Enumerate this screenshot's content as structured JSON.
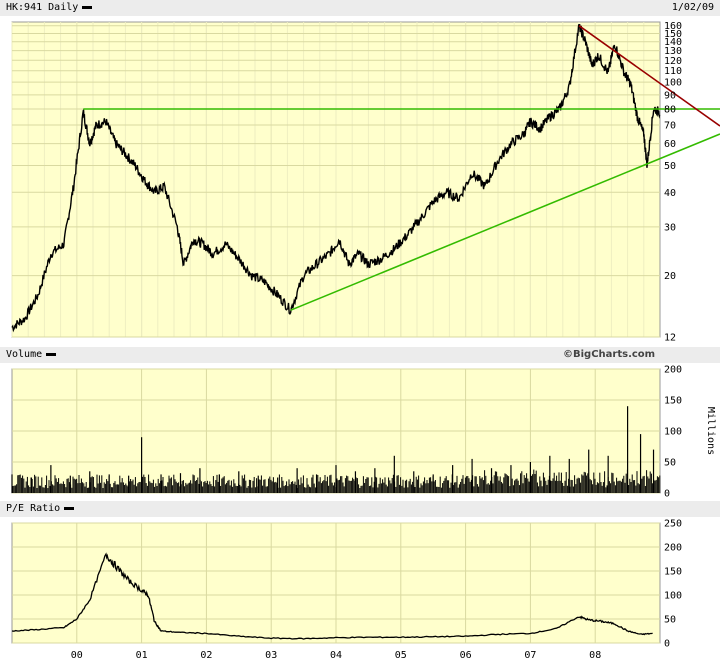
{
  "header": {
    "symbol": "HK:941",
    "period": "Daily",
    "date": "1/02/09"
  },
  "volume_title": "Volume",
  "pe_title": "P/E Ratio",
  "credit": "©BigCharts.com",
  "colors": {
    "panel": "#ffffcc",
    "grid": "#d9d9a0",
    "series": "#000000",
    "support": "#33bb00",
    "resistance": "#990000"
  },
  "chart_data": [
    {
      "type": "line",
      "name": "price",
      "scale": "log",
      "ylim": [
        12,
        165
      ],
      "y_ticks": [
        12,
        20,
        30,
        40,
        50,
        60,
        70,
        80,
        90,
        100,
        110,
        120,
        130,
        140,
        150,
        160
      ],
      "x_ticks": [
        "00",
        "01",
        "02",
        "03",
        "04",
        "05",
        "06",
        "07",
        "08"
      ],
      "x_tick_positions": [
        2000,
        2001,
        2002,
        2003,
        2004,
        2005,
        2006,
        2007,
        2008
      ],
      "xlim": [
        1999.0,
        2009.0
      ],
      "series": [
        {
          "values_x": [
            1999.0,
            1999.2,
            1999.4,
            1999.6,
            1999.8,
            1999.95,
            2000.1,
            2000.2,
            2000.3,
            2000.45,
            2000.6,
            2000.75,
            2000.9,
            2001.05,
            2001.2,
            2001.35,
            2001.55,
            2001.65,
            2001.8,
            2001.95,
            2002.1,
            2002.3,
            2002.5,
            2002.7,
            2002.9,
            2003.1,
            2003.3,
            2003.5,
            2003.7,
            2003.9,
            2004.05,
            2004.2,
            2004.35,
            2004.5,
            2004.7,
            2004.9,
            2005.1,
            2005.3,
            2005.5,
            2005.7,
            2005.9,
            2006.1,
            2006.3,
            2006.5,
            2006.7,
            2006.9,
            2007.0,
            2007.15,
            2007.3,
            2007.45,
            2007.6,
            2007.75,
            2007.85,
            2007.95,
            2008.05,
            2008.2,
            2008.3,
            2008.45,
            2008.55,
            2008.65,
            2008.75,
            2008.8,
            2008.9,
            2009.0
          ],
          "values": [
            13,
            14,
            17,
            24,
            26,
            42,
            78,
            60,
            70,
            72,
            60,
            55,
            50,
            44,
            40,
            42,
            30,
            22,
            27,
            26,
            24,
            26,
            23,
            20,
            19,
            17,
            15,
            20,
            22,
            24,
            27,
            22,
            24,
            22,
            23,
            25,
            28,
            32,
            37,
            40,
            38,
            47,
            42,
            52,
            60,
            65,
            72,
            68,
            75,
            80,
            96,
            160,
            140,
            115,
            125,
            108,
            138,
            108,
            98,
            75,
            65,
            50,
            80,
            78
          ]
        }
      ],
      "trendlines": [
        {
          "name": "resistance-horizontal",
          "color": "#33bb00",
          "from": [
            2000.1,
            80
          ],
          "to": [
            2009.0,
            80
          ]
        },
        {
          "name": "support-rising",
          "color": "#33bb00",
          "from": [
            2003.3,
            15
          ],
          "to": [
            2009.0,
            65
          ]
        },
        {
          "name": "resistance-falling",
          "color": "#990000",
          "from": [
            2007.75,
            160
          ],
          "to": [
            2009.0,
            82
          ]
        }
      ]
    },
    {
      "type": "bar",
      "name": "volume",
      "ylabel": "Millions",
      "ylim": [
        0,
        200
      ],
      "y_ticks": [
        0,
        50,
        100,
        150,
        200
      ],
      "series": [
        {
          "values_x": [
            1999.0,
            1999.3,
            1999.6,
            1999.9,
            2000.2,
            2000.5,
            2000.8,
            2001.0,
            2001.3,
            2001.6,
            2001.9,
            2002.2,
            2002.5,
            2002.8,
            2003.1,
            2003.4,
            2003.7,
            2004.0,
            2004.3,
            2004.6,
            2004.9,
            2005.2,
            2005.5,
            2005.8,
            2006.1,
            2006.4,
            2006.7,
            2007.0,
            2007.3,
            2007.6,
            2007.9,
            2008.2,
            2008.5,
            2008.7,
            2008.9
          ],
          "values": [
            30,
            25,
            45,
            28,
            35,
            30,
            28,
            90,
            30,
            32,
            40,
            30,
            35,
            28,
            25,
            40,
            30,
            45,
            35,
            40,
            60,
            35,
            30,
            45,
            55,
            40,
            45,
            50,
            60,
            55,
            70,
            60,
            140,
            95,
            70
          ]
        }
      ]
    },
    {
      "type": "line",
      "name": "pe-ratio",
      "ylim": [
        0,
        250
      ],
      "y_ticks": [
        0,
        50,
        100,
        150,
        200,
        250
      ],
      "series": [
        {
          "values_x": [
            1999.0,
            1999.4,
            1999.8,
            2000.0,
            2000.2,
            2000.45,
            2000.6,
            2000.8,
            2001.0,
            2001.1,
            2001.2,
            2001.3,
            2001.6,
            2002.0,
            2002.5,
            2003.0,
            2003.5,
            2004.0,
            2004.5,
            2005.0,
            2005.5,
            2006.0,
            2006.5,
            2007.0,
            2007.4,
            2007.75,
            2007.9,
            2008.1,
            2008.3,
            2008.5,
            2008.7,
            2008.9
          ],
          "values": [
            25,
            28,
            32,
            50,
            90,
            185,
            160,
            130,
            110,
            100,
            45,
            25,
            22,
            20,
            14,
            10,
            9,
            11,
            12,
            12,
            13,
            14,
            18,
            20,
            30,
            55,
            48,
            45,
            40,
            25,
            18,
            20
          ]
        }
      ]
    }
  ]
}
